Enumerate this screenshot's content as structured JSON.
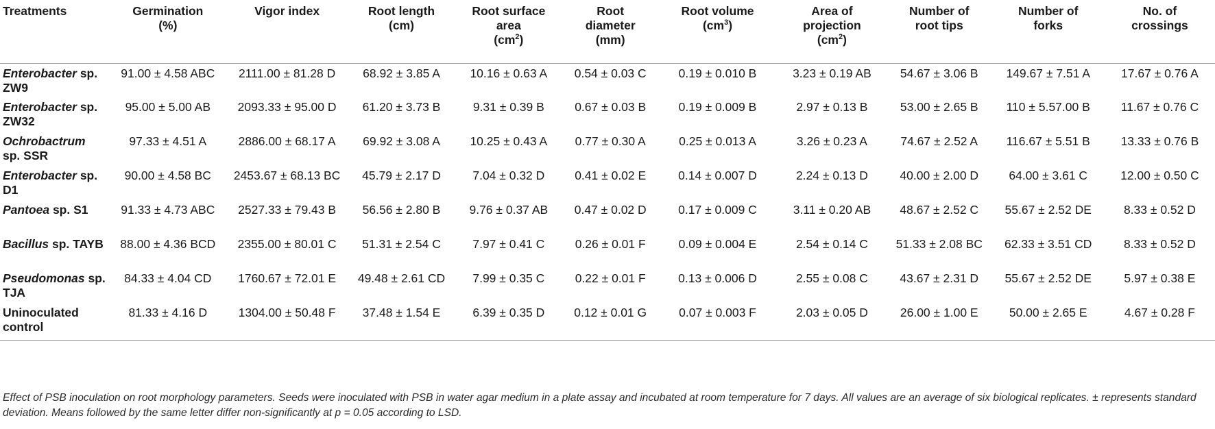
{
  "table": {
    "headers": [
      [
        "Treatments"
      ],
      [
        "Germination",
        "(%)"
      ],
      [
        "Vigor index"
      ],
      [
        "Root length",
        "(cm)"
      ],
      [
        "Root surface",
        "area",
        "(cm",
        "2",
        ")"
      ],
      [
        "Root",
        "diameter",
        "(mm)"
      ],
      [
        "Root volume",
        "(cm",
        "3",
        ")"
      ],
      [
        "Area of",
        "projection",
        "(cm",
        "2",
        ")"
      ],
      [
        "Number of",
        "root tips"
      ],
      [
        "Number of",
        "forks"
      ],
      [
        "No. of",
        "crossings"
      ]
    ],
    "header_labels": {
      "treatments": "Treatments",
      "germination": {
        "line1": "Germination",
        "line2": "(%)"
      },
      "vigor": "Vigor index",
      "root_length": {
        "line1": "Root length",
        "line2": "(cm)"
      },
      "root_surface": {
        "line1": "Root surface",
        "line2": "area",
        "unit": "(cm",
        "sup": "2",
        "close": ")"
      },
      "root_diameter": {
        "line1": "Root",
        "line2": "diameter",
        "line3": "(mm)"
      },
      "root_volume": {
        "line1": "Root volume",
        "unit": "(cm",
        "sup": "3",
        "close": ")"
      },
      "area_projection": {
        "line1": "Area of",
        "line2": "projection",
        "unit": "(cm",
        "sup": "2",
        "close": ")"
      },
      "root_tips": {
        "line1": "Number of",
        "line2": "root tips"
      },
      "forks": {
        "line1": "Number of",
        "line2": "forks"
      },
      "crossings": {
        "line1": "No. of",
        "line2": "crossings"
      }
    },
    "rows": [
      {
        "genus": "Enterobacter",
        "rest": " sp.",
        "line2": "ZW9",
        "cells": [
          "91.00 ± 4.58 ABC",
          "2111.00 ± 81.28 D",
          "68.92 ± 3.85 A",
          "10.16 ± 0.63 A",
          "0.54 ± 0.03 C",
          "0.19 ± 0.010 B",
          "3.23 ± 0.19 AB",
          "54.67 ± 3.06 B",
          "149.67 ± 7.51 A",
          "17.67 ± 0.76 A"
        ]
      },
      {
        "genus": "Enterobacter",
        "rest": " sp.",
        "line2": "ZW32",
        "cells": [
          "95.00 ± 5.00 AB",
          "2093.33 ± 95.00 D",
          "61.20 ± 3.73 B",
          "9.31 ± 0.39 B",
          "0.67 ± 0.03 B",
          "0.19 ± 0.009 B",
          "2.97 ± 0.13 B",
          "53.00 ± 2.65 B",
          "110 ± 5.57.00 B",
          "11.67 ± 0.76 C"
        ]
      },
      {
        "genus": "Ochrobactrum",
        "rest": "",
        "line2": "sp. SSR",
        "cells": [
          "97.33 ± 4.51 A",
          "2886.00 ± 68.17 A",
          "69.92 ± 3.08 A",
          "10.25 ± 0.43 A",
          "0.77 ± 0.30 A",
          "0.25 ± 0.013 A",
          "3.26 ± 0.23 A",
          "74.67 ± 2.52 A",
          "116.67 ± 5.51 B",
          "13.33 ± 0.76 B"
        ]
      },
      {
        "genus": "Enterobacter",
        "rest": " sp.",
        "line2": "D1",
        "cells": [
          "90.00 ± 4.58 BC",
          "2453.67 ± 68.13 BC",
          "45.79 ± 2.17 D",
          "7.04 ± 0.32 D",
          "0.41 ± 0.02 E",
          "0.14 ± 0.007 D",
          "2.24 ± 0.13 D",
          "40.00 ± 2.00 D",
          "64.00 ± 3.61 C",
          "12.00 ± 0.50 C"
        ]
      },
      {
        "genus": "Pantoea",
        "rest": " sp. S1",
        "line2": "",
        "cells": [
          "91.33 ± 4.73 ABC",
          "2527.33 ± 79.43 B",
          "56.56 ± 2.80 B",
          "9.76 ± 0.37 AB",
          "0.47 ± 0.02 D",
          "0.17 ± 0.009 C",
          "3.11 ± 0.20 AB",
          "48.67 ± 2.52 C",
          "55.67 ± 2.52 DE",
          "8.33 ± 0.52 D"
        ]
      },
      {
        "genus": "Bacillus",
        "rest": " sp. TAYB",
        "line2": "",
        "cells": [
          "88.00 ± 4.36 BCD",
          "2355.00 ± 80.01 C",
          "51.31 ± 2.54 C",
          "7.97 ± 0.41 C",
          "0.26 ± 0.01 F",
          "0.09 ± 0.004 E",
          "2.54 ± 0.14 C",
          "51.33 ± 2.08 BC",
          "62.33 ± 3.51 CD",
          "8.33 ± 0.52 D"
        ]
      },
      {
        "genus": "Pseudomonas",
        "rest": " sp.",
        "line2": "TJA",
        "cells": [
          "84.33 ± 4.04 CD",
          "1760.67 ± 72.01 E",
          "49.48 ± 2.61 CD",
          "7.99 ± 0.35 C",
          "0.22 ± 0.01 F",
          "0.13 ± 0.006 D",
          "2.55 ± 0.08 C",
          "43.67 ± 2.31 D",
          "55.67 ± 2.52 DE",
          "5.97 ± 0.38 E"
        ]
      },
      {
        "genus": "",
        "rest": "Uninoculated",
        "line2": "control",
        "cells": [
          "81.33 ± 4.16 D",
          "1304.00 ± 50.48 F",
          "37.48 ± 1.54 E",
          "6.39 ± 0.35 D",
          "0.12 ± 0.01 G",
          "0.07 ± 0.003 F",
          "2.03 ± 0.05 D",
          "26.00 ± 1.00 E",
          "50.00 ± 2.65 E",
          "4.67 ± 0.28 F"
        ]
      }
    ]
  },
  "caption": "Effect of PSB inoculation on root morphology parameters. Seeds were inoculated with PSB in water agar medium in a plate assay and incubated at room temperature for 7 days. All values are an average of six biological replicates. ± represents standard deviation. Means followed by the same letter differ non-significantly at p = 0.05 according to LSD."
}
